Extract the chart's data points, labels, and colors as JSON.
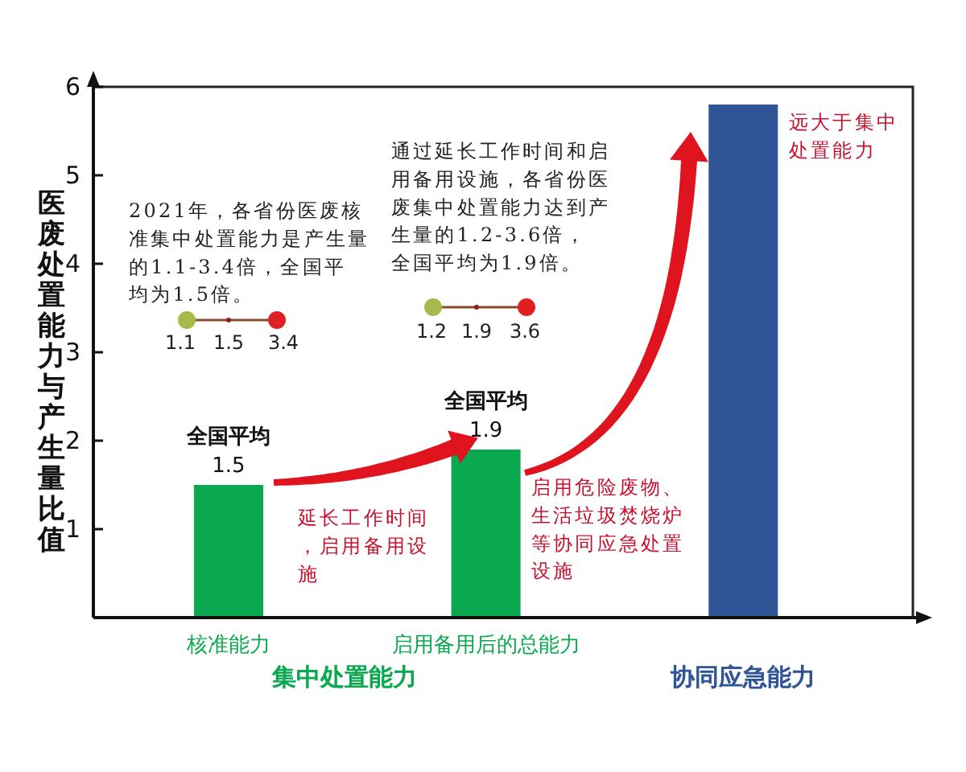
{
  "chart_data": {
    "type": "bar",
    "ylabel": "医废处置能力与产生量比值",
    "categories": [
      "核准能力",
      "启用备用后的总能力",
      "协同应急能力"
    ],
    "values": [
      1.5,
      1.9,
      5.8
    ],
    "colors": [
      "#0aa84f",
      "#0aa84f",
      "#2f5597"
    ],
    "value_labels": [
      "1.5",
      "1.9",
      null
    ],
    "ylim": [
      0,
      6
    ],
    "yticks": [
      1,
      2,
      3,
      4,
      5,
      6
    ],
    "annotations": [
      {
        "text": "全国平均",
        "x": "核准能力",
        "y": 1.5
      },
      {
        "text": "全国平均",
        "x": "启用备用后的总能力",
        "y": 1.9
      },
      "2021年，各省份医废核准集中处置能力是产生量的1.1-3.4倍，全国平均为1.5倍。",
      "1.1",
      "1.5",
      "3.4",
      "通过延长工作时间和启用备用设施，各省份医废集中处置能力达到产生量的1.2-3.6倍，全国平均为1.9倍。",
      "1.2",
      "1.9",
      "3.6",
      "延长工作时间，启用备用设施",
      "启用危险废物、生活垃圾焚烧炉等协同应急处置设施",
      "远大于集中处置能力",
      "集中处置能力"
    ]
  }
}
